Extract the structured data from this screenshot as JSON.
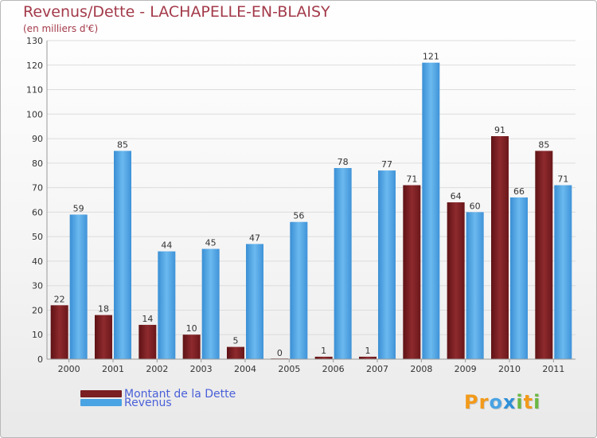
{
  "chart_data": {
    "type": "bar",
    "title": "Revenus/Dette - LACHAPELLE-EN-BLAISY",
    "subtitle": "(en milliers d'€)",
    "categories": [
      "2000",
      "2001",
      "2002",
      "2003",
      "2004",
      "2005",
      "2006",
      "2007",
      "2008",
      "2009",
      "2010",
      "2011"
    ],
    "series": [
      {
        "name": "Montant de la Dette",
        "color": "#7a1f22",
        "values": [
          22,
          18,
          14,
          10,
          5,
          0,
          1,
          1,
          71,
          64,
          91,
          85
        ]
      },
      {
        "name": "Revenus",
        "color": "#4aa3e3",
        "values": [
          59,
          85,
          44,
          45,
          47,
          56,
          78,
          77,
          121,
          60,
          66,
          71
        ]
      }
    ],
    "ylim": [
      0,
      130
    ],
    "yticks": [
      0,
      10,
      20,
      30,
      40,
      50,
      60,
      70,
      80,
      90,
      100,
      110,
      120,
      130
    ],
    "grid": true,
    "legend": "bottom-left"
  },
  "logo": {
    "text": "Proxiti",
    "letter_colors": [
      "#f29a1a",
      "#f29a1a",
      "#4aa3e3",
      "#2e8fd6",
      "#6ab842",
      "#f29a1a",
      "#6ab842"
    ]
  }
}
